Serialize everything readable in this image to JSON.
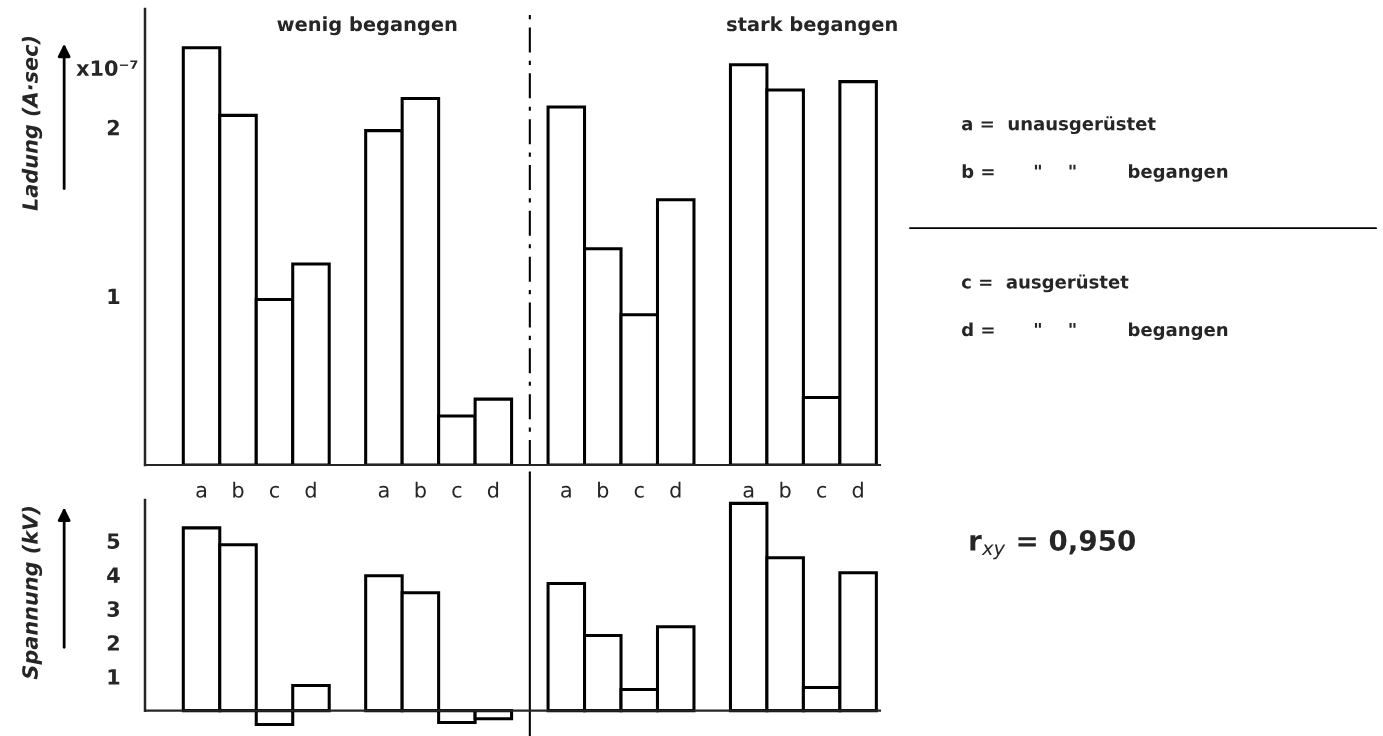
{
  "chart_data": [
    {
      "type": "bar",
      "ylabel": "Ladung (A·sec)",
      "categories": [
        "a",
        "b",
        "c",
        "d",
        null,
        "a",
        "b",
        "c",
        "d",
        null,
        "a",
        "b",
        "c",
        "d",
        null,
        "a",
        "b",
        "c",
        "d"
      ],
      "values": [
        2.47,
        2.07,
        0.98,
        1.19,
        null,
        1.98,
        2.17,
        0.29,
        0.39,
        null,
        2.12,
        1.28,
        0.89,
        1.57,
        null,
        2.37,
        2.22,
        0.4,
        2.27
      ],
      "color": "#ffffff",
      "ylim": [
        0,
        2.7
      ],
      "yticks": [
        1,
        2
      ],
      "annotations": [
        "x10⁻⁷",
        "wenig begangen",
        "stark begangen",
        "a =  unausgerüstet",
        "b =      \"    \"        begangen",
        "c =  ausgerüstet",
        "d =      \"    \"        begangen",
        "r$_{xy}$ = 0,950"
      ],
      "legend": false
    },
    {
      "type": "bar",
      "ylabel": "Spannung (kV)",
      "categories": [
        null,
        null,
        null,
        null,
        null,
        null,
        null,
        null,
        null,
        null,
        null,
        null,
        null,
        null,
        null,
        null,
        null,
        null,
        null
      ],
      "values": [
        5.38,
        4.88,
        -0.41,
        0.74,
        null,
        3.97,
        3.47,
        -0.35,
        -0.24,
        null,
        3.74,
        2.21,
        0.62,
        2.47,
        null,
        6.1,
        4.5,
        0.68,
        4.06
      ],
      "color": "#ffffff",
      "ylim": [
        -0.6,
        6.2
      ],
      "yticks": [
        1,
        2,
        3,
        4,
        5
      ],
      "tick_labels": "y",
      "legend": false
    }
  ]
}
